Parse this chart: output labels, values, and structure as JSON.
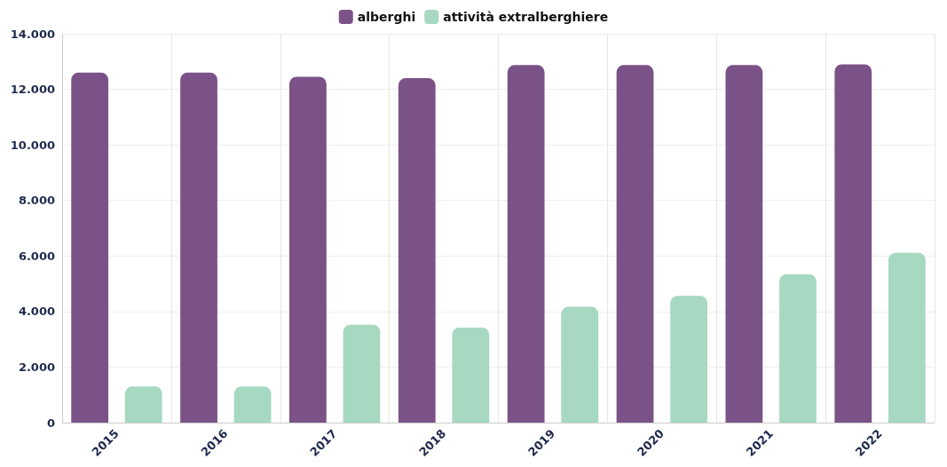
{
  "chart_data": {
    "type": "bar",
    "categories": [
      "2015",
      "2016",
      "2017",
      "2018",
      "2019",
      "2020",
      "2021",
      "2022"
    ],
    "series": [
      {
        "name": "alberghi",
        "color": "#7b5287",
        "values": [
          12600,
          12600,
          12450,
          12400,
          12870,
          12870,
          12870,
          12900
        ]
      },
      {
        "name": "attività extralberghiere",
        "color": "#a6d8c2",
        "values": [
          1300,
          1300,
          3520,
          3420,
          4170,
          4560,
          5340,
          6110
        ]
      }
    ],
    "ylim": [
      0,
      14000
    ],
    "yticks": [
      {
        "value": 0,
        "label": "0"
      },
      {
        "value": 2000,
        "label": "2.000"
      },
      {
        "value": 4000,
        "label": "4.000"
      },
      {
        "value": 6000,
        "label": "6.000"
      },
      {
        "value": 8000,
        "label": "8.000"
      },
      {
        "value": 10000,
        "label": "10.000"
      },
      {
        "value": 12000,
        "label": "12.000"
      },
      {
        "value": 14000,
        "label": "14.000"
      }
    ],
    "grid": true,
    "legend": "top"
  }
}
